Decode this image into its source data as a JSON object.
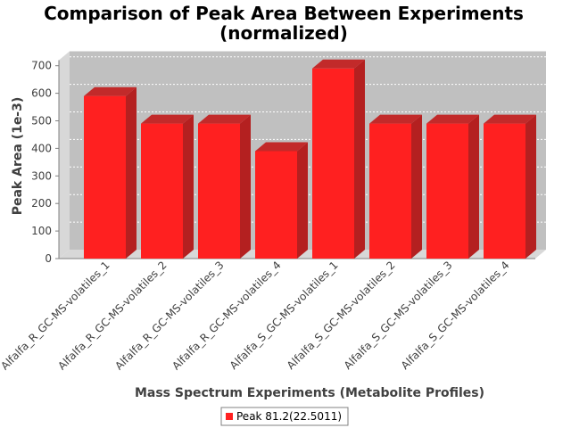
{
  "chart_data": {
    "type": "bar",
    "title": "Comparison of Peak Area Between Experiments",
    "subtitle": "(normalized)",
    "xlabel": "Mass Spectrum Experiments (Metabolite Profiles)",
    "ylabel": "Peak Area (1e-3)",
    "ylim": [
      0,
      720
    ],
    "yticks": [
      0,
      100,
      200,
      300,
      400,
      500,
      600,
      700
    ],
    "categories": [
      "Alfalfa_R_GC-MS-volatiles_1",
      "Alfalfa_R_GC-MS-volatiles_2",
      "Alfalfa_R_GC-MS-volatiles_3",
      "Alfalfa_R_GC-MS-volatiles_4",
      "Alfalfa_S_GC-MS-volatiles_1",
      "Alfalfa_S_GC-MS-volatiles_2",
      "Alfalfa_S_GC-MS-volatiles_3",
      "Alfalfa_S_GC-MS-volatiles_4"
    ],
    "series": [
      {
        "name": "Peak 81.2(22.5011)",
        "values": [
          590,
          490,
          490,
          390,
          690,
          490,
          490,
          490
        ],
        "color": "#ff2020"
      }
    ],
    "grid": true,
    "legend": "bottom",
    "style": "3d"
  }
}
